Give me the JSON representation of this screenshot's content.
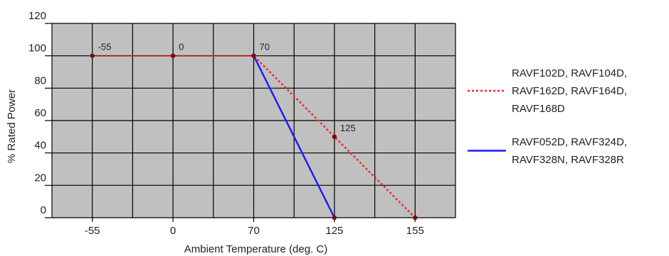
{
  "chart_data": {
    "type": "line",
    "title": "",
    "xlabel": "Ambient Temperature (deg. C)",
    "ylabel": "% Rated Power",
    "categories": [
      "-55",
      "0",
      "70",
      "125",
      "155"
    ],
    "x_ticks": [
      "-55",
      "0",
      "70",
      "125",
      "155"
    ],
    "y_ticks": [
      0,
      20,
      40,
      60,
      80,
      100,
      120
    ],
    "ylim": [
      0,
      120
    ],
    "grid": true,
    "background_color": "#c0c0c0",
    "legend_position": "right",
    "series": [
      {
        "name": "RAVF102D, RAVF104D, RAVF162D, RAVF164D, RAVF168D",
        "legend_lines": [
          "RAVF102D, RAVF104D,",
          "RAVF162D, RAVF164D,",
          "RAVF168D"
        ],
        "color": "#ff2020",
        "style": "dotted",
        "x": [
          "-55",
          "0",
          "70",
          "125",
          "155"
        ],
        "y": [
          100,
          100,
          100,
          50,
          0
        ]
      },
      {
        "name": "RAVF052D, RAVF324D, RAVF328N, RAVF328R",
        "legend_lines": [
          "RAVF052D, RAVF324D,",
          "RAVF328N, RAVF328R"
        ],
        "color": "#1a1aff",
        "style": "solid",
        "x": [
          "70",
          "125"
        ],
        "y": [
          100,
          0
        ]
      }
    ],
    "point_labels": [
      {
        "x": "-55",
        "y": 100,
        "text": "-55"
      },
      {
        "x": "0",
        "y": 100,
        "text": "0"
      },
      {
        "x": "70",
        "y": 100,
        "text": "70"
      },
      {
        "x": "125",
        "y": 50,
        "text": "125"
      }
    ]
  }
}
